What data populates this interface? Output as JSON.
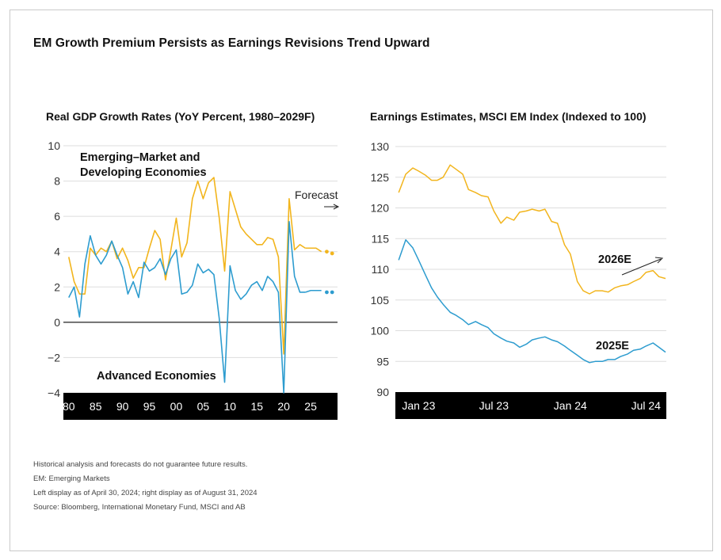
{
  "main_title": "EM Growth Premium Persists as Earnings Revisions Trend Upward",
  "colors": {
    "em": "#f2b51d",
    "adv": "#2d9ccf",
    "axis_bar": "#000000",
    "axis_text": "#ffffff",
    "grid": "#dddddd"
  },
  "notes": [
    "Historical analysis and forecasts do not guarantee future results.",
    "EM: Emerging Markets",
    "Left display as of April 30, 2024; right display as of August 31, 2024",
    "Source: Bloomberg, International Monetary Fund, MSCI and AB"
  ],
  "chart_data": [
    {
      "type": "line",
      "title": "Real GDP Growth Rates (YoY Percent, 1980–2029F)",
      "ylim": [
        -4,
        10
      ],
      "yticks": [
        "10",
        "8",
        "6",
        "4",
        "2",
        "0",
        "−2",
        "−4"
      ],
      "ytick_values": [
        10,
        8,
        6,
        4,
        2,
        0,
        -2,
        -4
      ],
      "xlim": [
        1979,
        2030
      ],
      "xticks": [
        "80",
        "85",
        "90",
        "95",
        "00",
        "05",
        "10",
        "15",
        "20",
        "25"
      ],
      "xtick_values": [
        1980,
        1985,
        1990,
        1995,
        2000,
        2005,
        2010,
        2015,
        2020,
        2025
      ],
      "grid": true,
      "forecast_label": "Forecast",
      "forecast_start": 2024,
      "x": [
        1980,
        1981,
        1982,
        1983,
        1984,
        1985,
        1986,
        1987,
        1988,
        1989,
        1990,
        1991,
        1992,
        1993,
        1994,
        1995,
        1996,
        1997,
        1998,
        1999,
        2000,
        2001,
        2002,
        2003,
        2004,
        2005,
        2006,
        2007,
        2008,
        2009,
        2010,
        2011,
        2012,
        2013,
        2014,
        2015,
        2016,
        2017,
        2018,
        2019,
        2020,
        2021,
        2022,
        2023,
        2024,
        2025,
        2026,
        2027,
        2028,
        2029
      ],
      "series": [
        {
          "name": "Emerging–Market and\nDeveloping Economies",
          "color": "#f2b51d",
          "values": [
            3.7,
            2.3,
            1.6,
            1.6,
            4.2,
            3.8,
            4.2,
            4.0,
            4.6,
            3.6,
            4.2,
            3.5,
            2.5,
            3.1,
            3.1,
            4.2,
            5.2,
            4.7,
            2.4,
            4.1,
            5.9,
            3.7,
            4.5,
            7.0,
            8.0,
            7.0,
            7.9,
            8.2,
            5.9,
            2.9,
            7.4,
            6.4,
            5.4,
            5.0,
            4.7,
            4.4,
            4.4,
            4.8,
            4.7,
            3.7,
            -1.8,
            7.0,
            4.1,
            4.4,
            4.2,
            4.2,
            4.2,
            4.0,
            4.0,
            3.9
          ]
        },
        {
          "name": "Advanced Economies",
          "color": "#2d9ccf",
          "values": [
            1.4,
            2.0,
            0.3,
            3.3,
            4.9,
            3.8,
            3.3,
            3.8,
            4.6,
            3.8,
            3.1,
            1.6,
            2.3,
            1.4,
            3.4,
            2.9,
            3.1,
            3.6,
            2.7,
            3.6,
            4.1,
            1.6,
            1.7,
            2.1,
            3.3,
            2.8,
            3.0,
            2.7,
            0.2,
            -3.4,
            3.2,
            1.8,
            1.3,
            1.6,
            2.1,
            2.3,
            1.8,
            2.6,
            2.3,
            1.7,
            -4.0,
            5.7,
            2.6,
            1.7,
            1.7,
            1.8,
            1.8,
            1.8,
            1.7,
            1.7
          ]
        }
      ]
    },
    {
      "type": "line",
      "title": "Earnings Estimates, MSCI EM Index (Indexed to 100)",
      "ylim": [
        90,
        130
      ],
      "yticks": [
        "130",
        "125",
        "120",
        "115",
        "110",
        "105",
        "100",
        "95",
        "90"
      ],
      "ytick_values": [
        130,
        125,
        120,
        115,
        110,
        105,
        100,
        95,
        90
      ],
      "xticks": [
        "Jan 23",
        "Jul 23",
        "Jan 24",
        "Jul 24"
      ],
      "xtick_values": [
        "2023-01-15",
        "2023-07-15",
        "2024-01-15",
        "2024-07-15"
      ],
      "xlim": [
        "2022-11-20",
        "2024-09-02"
      ],
      "grid": true,
      "series": [
        {
          "name": "2026E",
          "color": "#f2b51d",
          "x": [
            "2022-11-28",
            "2022-12-15",
            "2023-01-01",
            "2023-01-15",
            "2023-02-01",
            "2023-02-15",
            "2023-03-01",
            "2023-03-15",
            "2023-04-01",
            "2023-04-15",
            "2023-05-01",
            "2023-05-15",
            "2023-06-01",
            "2023-06-15",
            "2023-07-01",
            "2023-07-15",
            "2023-08-01",
            "2023-08-15",
            "2023-09-01",
            "2023-09-15",
            "2023-10-01",
            "2023-10-15",
            "2023-11-01",
            "2023-11-15",
            "2023-12-01",
            "2023-12-15",
            "2024-01-01",
            "2024-01-15",
            "2024-02-01",
            "2024-02-15",
            "2024-03-01",
            "2024-03-15",
            "2024-04-01",
            "2024-04-15",
            "2024-05-01",
            "2024-05-15",
            "2024-06-01",
            "2024-06-15",
            "2024-07-01",
            "2024-07-15",
            "2024-08-01",
            "2024-08-15",
            "2024-08-31"
          ],
          "values": [
            122.5,
            125.5,
            126.5,
            126.0,
            125.3,
            124.5,
            124.5,
            125.0,
            127.0,
            126.3,
            125.5,
            123.0,
            122.5,
            122.0,
            121.8,
            119.5,
            117.5,
            118.5,
            118.0,
            119.3,
            119.5,
            119.8,
            119.5,
            119.8,
            117.8,
            117.5,
            114.0,
            112.5,
            108.0,
            106.5,
            106.0,
            106.5,
            106.5,
            106.3,
            107.0,
            107.3,
            107.5,
            108.0,
            108.5,
            109.5,
            109.8,
            108.8,
            108.5
          ]
        },
        {
          "name": "2025E",
          "color": "#2d9ccf",
          "x": [
            "2022-11-28",
            "2022-12-15",
            "2023-01-01",
            "2023-01-15",
            "2023-02-01",
            "2023-02-15",
            "2023-03-01",
            "2023-03-15",
            "2023-04-01",
            "2023-04-15",
            "2023-05-01",
            "2023-05-15",
            "2023-06-01",
            "2023-06-15",
            "2023-07-01",
            "2023-07-15",
            "2023-08-01",
            "2023-08-15",
            "2023-09-01",
            "2023-09-15",
            "2023-10-01",
            "2023-10-15",
            "2023-11-01",
            "2023-11-15",
            "2023-12-01",
            "2023-12-15",
            "2024-01-01",
            "2024-01-15",
            "2024-02-01",
            "2024-02-15",
            "2024-03-01",
            "2024-03-15",
            "2024-04-01",
            "2024-04-15",
            "2024-05-01",
            "2024-05-15",
            "2024-06-01",
            "2024-06-15",
            "2024-07-01",
            "2024-07-15",
            "2024-08-01",
            "2024-08-15",
            "2024-08-31"
          ],
          "values": [
            111.5,
            114.8,
            113.5,
            111.5,
            109.0,
            107.0,
            105.5,
            104.3,
            103.0,
            102.5,
            101.8,
            101.0,
            101.5,
            101.0,
            100.5,
            99.5,
            98.8,
            98.3,
            98.0,
            97.3,
            97.8,
            98.5,
            98.8,
            99.0,
            98.5,
            98.2,
            97.5,
            96.8,
            96.0,
            95.3,
            94.8,
            95.0,
            95.0,
            95.3,
            95.3,
            95.8,
            96.2,
            96.8,
            97.0,
            97.5,
            98.0,
            97.3,
            96.5
          ]
        }
      ]
    }
  ]
}
